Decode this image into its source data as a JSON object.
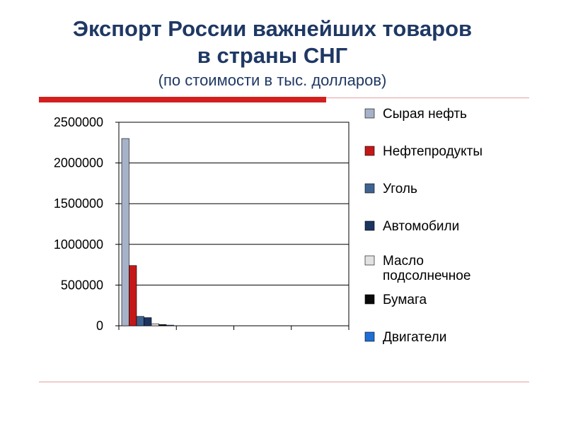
{
  "slide": {
    "title_line1": "Экспорт России важнейших товаров",
    "title_line2": "в страны СНГ",
    "subtitle": "(по стоимости в тыс. долларов)"
  },
  "colors": {
    "title": "#1f3864",
    "accent_red": "#d41f1f"
  },
  "chart_data": {
    "type": "bar",
    "title": "",
    "xlabel": "",
    "ylabel": "",
    "ylim": [
      0,
      2500000
    ],
    "yticks": [
      "0",
      "500000",
      "1000000",
      "1500000",
      "2000000",
      "2500000"
    ],
    "categories": [
      "",
      "",
      "",
      ""
    ],
    "grid": true,
    "legend_position": "right",
    "series": [
      {
        "name": "Сырая нефть",
        "color": "#a6b2c8",
        "values": [
          2300000,
          0,
          0,
          0
        ]
      },
      {
        "name": "Нефтепродукты",
        "color": "#c41818",
        "values": [
          740000,
          0,
          0,
          0
        ]
      },
      {
        "name": "Уголь",
        "color": "#3f6390",
        "values": [
          115000,
          0,
          0,
          0
        ]
      },
      {
        "name": "Автомобили",
        "color": "#1b3460",
        "values": [
          100000,
          0,
          0,
          0
        ]
      },
      {
        "name": "Масло подсолнечное",
        "color": "#e2e2e2",
        "values": [
          25000,
          0,
          0,
          0
        ]
      },
      {
        "name": "Бумага",
        "color": "#0a0a0a",
        "values": [
          15000,
          0,
          0,
          0
        ]
      },
      {
        "name": "Двигатели",
        "color": "#1e6ed6",
        "values": [
          8000,
          0,
          0,
          0
        ]
      }
    ]
  }
}
